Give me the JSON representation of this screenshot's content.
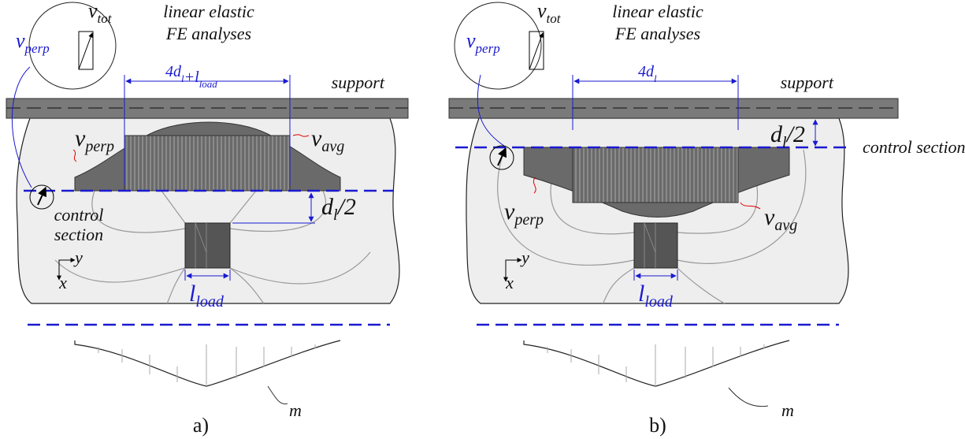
{
  "panels": [
    {
      "caption": "a)",
      "annotation": [
        "linear elastic",
        "FE analyses"
      ],
      "inset_total": [
        {
          "main": "v",
          "sub": "tot"
        }
      ],
      "inset_perp": [
        {
          "main": "v",
          "sub": "perp"
        }
      ],
      "width_label": [
        {
          "main": "4d",
          "sub": "l"
        },
        {
          "main": "+l",
          "sub": "load"
        }
      ],
      "support": "support",
      "v_perp": [
        {
          "main": "v",
          "sub": "perp"
        }
      ],
      "v_avg": [
        {
          "main": "v",
          "sub": "avg"
        }
      ],
      "control_section": [
        "control",
        "section"
      ],
      "depth_label": [
        {
          "main": "d",
          "sub": "l",
          "after": "/2"
        }
      ],
      "axis_y": "y",
      "axis_x": "x",
      "load_width": [
        {
          "main": "l",
          "sub": "load"
        }
      ],
      "moment": "m"
    },
    {
      "caption": "b)",
      "annotation": [
        "linear elastic",
        "FE analyses"
      ],
      "inset_total": [
        {
          "main": "v",
          "sub": "tot"
        }
      ],
      "inset_perp": [
        {
          "main": "v",
          "sub": "perp"
        }
      ],
      "width_label": [
        {
          "main": "4d",
          "sub": "l"
        }
      ],
      "support": "support",
      "v_perp": [
        {
          "main": "v",
          "sub": "perp"
        }
      ],
      "v_avg": [
        {
          "main": "v",
          "sub": "avg"
        }
      ],
      "control_section": [
        "control section"
      ],
      "depth_label": [
        {
          "main": "d",
          "sub": "l",
          "after": "/2"
        }
      ],
      "axis_y": "y",
      "axis_x": "x",
      "load_width": [
        {
          "main": "l",
          "sub": "load"
        }
      ],
      "moment": "m"
    }
  ]
}
